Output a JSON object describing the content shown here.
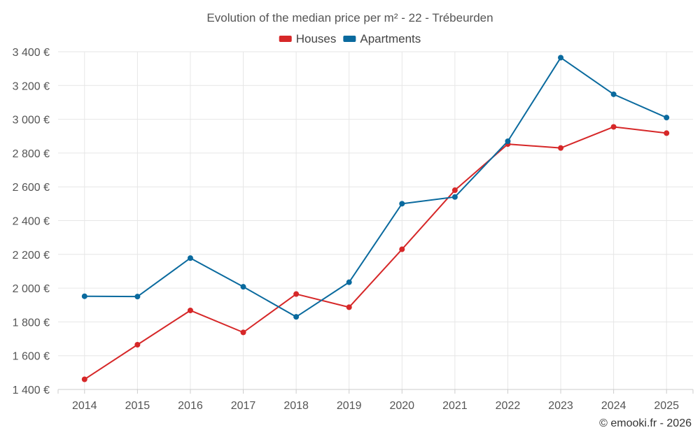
{
  "chart_data": {
    "type": "line",
    "title": "Evolution of the median price per m² - 22 - Trébeurden",
    "categories": [
      "2014",
      "2015",
      "2016",
      "2017",
      "2018",
      "2019",
      "2020",
      "2021",
      "2022",
      "2023",
      "2024",
      "2025"
    ],
    "series": [
      {
        "name": "Houses",
        "color": "#d62728",
        "values": [
          1460,
          1665,
          1868,
          1738,
          1965,
          1887,
          2230,
          2580,
          2853,
          2830,
          2955,
          2918
        ]
      },
      {
        "name": "Apartments",
        "color": "#0a6a9e",
        "values": [
          1952,
          1950,
          2178,
          2008,
          1830,
          2035,
          2500,
          2540,
          2870,
          3365,
          3148,
          3010
        ]
      }
    ],
    "ylim": [
      1400,
      3400
    ],
    "yticks": [
      1400,
      1600,
      1800,
      2000,
      2200,
      2400,
      2600,
      2800,
      3000,
      3200,
      3400
    ],
    "ytick_labels": [
      "1 400 €",
      "1 600 €",
      "1 800 €",
      "2 000 €",
      "2 200 €",
      "2 400 €",
      "2 600 €",
      "2 800 €",
      "3 000 €",
      "3 200 €",
      "3 400 €"
    ],
    "xlabel": "",
    "ylabel": "",
    "grid": true,
    "legend_position": "top-center"
  },
  "credit": "© emooki.fr - 2026"
}
